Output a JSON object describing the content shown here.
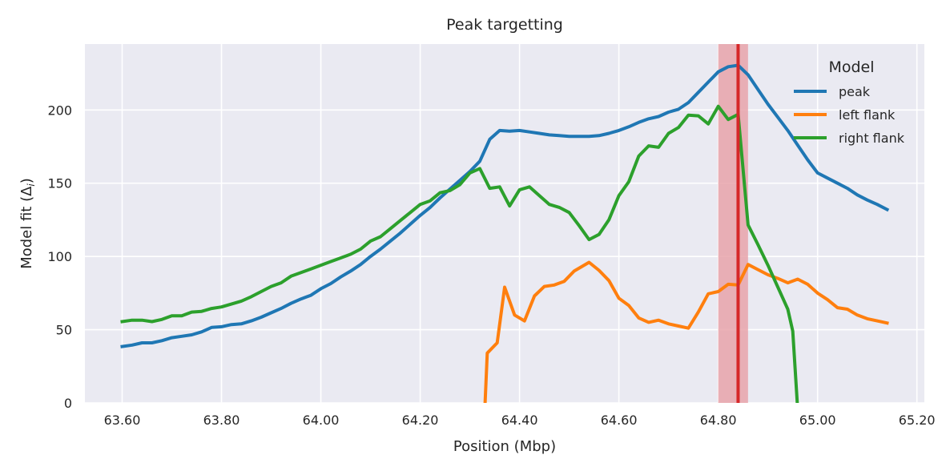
{
  "chart_data": {
    "type": "line",
    "title": "Peak targetting",
    "xlabel": "Position (Mbp)",
    "ylabel": "Model fit (Δ",
    "ylabel_sub": "i",
    "ylabel_close": ")",
    "xlim": [
      63.525,
      65.215
    ],
    "ylim": [
      0,
      245
    ],
    "xticks": [
      63.6,
      63.8,
      64.0,
      64.2,
      64.4,
      64.6,
      64.8,
      65.0,
      65.2
    ],
    "xtick_labels": [
      "63.60",
      "63.80",
      "64.00",
      "64.20",
      "64.40",
      "64.60",
      "64.80",
      "65.00",
      "65.20"
    ],
    "yticks": [
      0,
      50,
      100,
      150,
      200
    ],
    "ytick_labels": [
      "0",
      "50",
      "100",
      "150",
      "200"
    ],
    "grid": true,
    "background_color": "#eaeaf2",
    "legend": {
      "title": "Model",
      "position": "top-right"
    },
    "highlight_band": {
      "x0": 64.8,
      "x1": 64.86,
      "color": "#e8a3aa"
    },
    "highlight_line": {
      "x": 64.84,
      "color": "#d62728"
    },
    "series": [
      {
        "name": "peak",
        "color": "#1f77b4",
        "points": [
          [
            63.6,
            38.5
          ],
          [
            63.62,
            39.5
          ],
          [
            63.64,
            41
          ],
          [
            63.66,
            41
          ],
          [
            63.68,
            42.5
          ],
          [
            63.7,
            44.5
          ],
          [
            63.72,
            45.5
          ],
          [
            63.74,
            46.5
          ],
          [
            63.76,
            48.5
          ],
          [
            63.78,
            51.5
          ],
          [
            63.8,
            52
          ],
          [
            63.82,
            53.5
          ],
          [
            63.84,
            54
          ],
          [
            63.86,
            56
          ],
          [
            63.88,
            58.5
          ],
          [
            63.9,
            61.5
          ],
          [
            63.92,
            64.5
          ],
          [
            63.94,
            68
          ],
          [
            63.96,
            71
          ],
          [
            63.98,
            73.5
          ],
          [
            64.0,
            78
          ],
          [
            64.02,
            81.5
          ],
          [
            64.04,
            86
          ],
          [
            64.06,
            90
          ],
          [
            64.08,
            94.5
          ],
          [
            64.1,
            100
          ],
          [
            64.12,
            105
          ],
          [
            64.14,
            110.5
          ],
          [
            64.16,
            116
          ],
          [
            64.18,
            122
          ],
          [
            64.2,
            128
          ],
          [
            64.22,
            133.5
          ],
          [
            64.24,
            140
          ],
          [
            64.26,
            146
          ],
          [
            64.28,
            152
          ],
          [
            64.3,
            158
          ],
          [
            64.32,
            165
          ],
          [
            64.34,
            180
          ],
          [
            64.36,
            186
          ],
          [
            64.38,
            185.5
          ],
          [
            64.4,
            186
          ],
          [
            64.42,
            185
          ],
          [
            64.44,
            184
          ],
          [
            64.46,
            183
          ],
          [
            64.48,
            182.5
          ],
          [
            64.5,
            182
          ],
          [
            64.52,
            182
          ],
          [
            64.54,
            182
          ],
          [
            64.56,
            182.5
          ],
          [
            64.58,
            184
          ],
          [
            64.6,
            186
          ],
          [
            64.62,
            188.5
          ],
          [
            64.64,
            191.5
          ],
          [
            64.66,
            194
          ],
          [
            64.68,
            195.5
          ],
          [
            64.7,
            198.5
          ],
          [
            64.72,
            200.5
          ],
          [
            64.74,
            205
          ],
          [
            64.76,
            212
          ],
          [
            64.78,
            219
          ],
          [
            64.8,
            226
          ],
          [
            64.82,
            229.5
          ],
          [
            64.84,
            230.5
          ],
          [
            64.86,
            224
          ],
          [
            64.88,
            214
          ],
          [
            64.9,
            204
          ],
          [
            64.92,
            195
          ],
          [
            64.94,
            186
          ],
          [
            64.96,
            176
          ],
          [
            64.98,
            166
          ],
          [
            65.0,
            157
          ],
          [
            65.02,
            153.5
          ],
          [
            65.04,
            150
          ],
          [
            65.06,
            146.5
          ],
          [
            65.08,
            142
          ],
          [
            65.1,
            138.5
          ],
          [
            65.12,
            135.5
          ],
          [
            65.14,
            132
          ]
        ]
      },
      {
        "name": "left flank",
        "color": "#ff7f0e",
        "points": [
          [
            64.33,
            -5
          ],
          [
            64.335,
            34
          ],
          [
            64.355,
            41
          ],
          [
            64.37,
            79
          ],
          [
            64.39,
            60
          ],
          [
            64.41,
            56
          ],
          [
            64.43,
            73
          ],
          [
            64.45,
            79.5
          ],
          [
            64.47,
            80.5
          ],
          [
            64.49,
            83
          ],
          [
            64.51,
            90
          ],
          [
            64.54,
            96
          ],
          [
            64.56,
            90.5
          ],
          [
            64.58,
            83.5
          ],
          [
            64.6,
            71.5
          ],
          [
            64.62,
            66.5
          ],
          [
            64.64,
            58
          ],
          [
            64.66,
            55
          ],
          [
            64.68,
            56.5
          ],
          [
            64.7,
            54
          ],
          [
            64.72,
            52.5
          ],
          [
            64.74,
            51
          ],
          [
            64.76,
            62
          ],
          [
            64.78,
            74.5
          ],
          [
            64.8,
            76
          ],
          [
            64.82,
            81
          ],
          [
            64.84,
            80.5
          ],
          [
            64.86,
            94.5
          ],
          [
            64.88,
            91
          ],
          [
            64.9,
            87.5
          ],
          [
            64.92,
            85
          ],
          [
            64.94,
            82
          ],
          [
            64.96,
            84.5
          ],
          [
            64.98,
            81
          ],
          [
            65.0,
            75
          ],
          [
            65.02,
            70.5
          ],
          [
            65.04,
            65
          ],
          [
            65.06,
            64
          ],
          [
            65.08,
            60
          ],
          [
            65.1,
            57.5
          ],
          [
            65.12,
            56
          ],
          [
            65.14,
            54.5
          ]
        ]
      },
      {
        "name": "right flank",
        "color": "#2ca02c",
        "points": [
          [
            63.6,
            55.5
          ],
          [
            63.62,
            56.5
          ],
          [
            63.64,
            56.5
          ],
          [
            63.66,
            55.5
          ],
          [
            63.68,
            57
          ],
          [
            63.7,
            59.5
          ],
          [
            63.72,
            59.5
          ],
          [
            63.74,
            62
          ],
          [
            63.76,
            62.5
          ],
          [
            63.78,
            64.5
          ],
          [
            63.8,
            65.5
          ],
          [
            63.82,
            67.5
          ],
          [
            63.84,
            69.5
          ],
          [
            63.86,
            72.5
          ],
          [
            63.88,
            76
          ],
          [
            63.9,
            79.5
          ],
          [
            63.92,
            82
          ],
          [
            63.94,
            86.5
          ],
          [
            63.96,
            89
          ],
          [
            63.98,
            91.5
          ],
          [
            64.0,
            94
          ],
          [
            64.02,
            96.5
          ],
          [
            64.04,
            99
          ],
          [
            64.06,
            101.5
          ],
          [
            64.08,
            105
          ],
          [
            64.1,
            110.5
          ],
          [
            64.12,
            113.5
          ],
          [
            64.14,
            119
          ],
          [
            64.16,
            124.5
          ],
          [
            64.18,
            130
          ],
          [
            64.2,
            135.5
          ],
          [
            64.22,
            138
          ],
          [
            64.24,
            143.5
          ],
          [
            64.26,
            145
          ],
          [
            64.28,
            149
          ],
          [
            64.3,
            157
          ],
          [
            64.32,
            160
          ],
          [
            64.34,
            146.5
          ],
          [
            64.36,
            147.5
          ],
          [
            64.38,
            134.5
          ],
          [
            64.4,
            145.5
          ],
          [
            64.42,
            147.5
          ],
          [
            64.44,
            141.5
          ],
          [
            64.46,
            135.5
          ],
          [
            64.48,
            133.5
          ],
          [
            64.5,
            130
          ],
          [
            64.52,
            121
          ],
          [
            64.54,
            111.5
          ],
          [
            64.56,
            115
          ],
          [
            64.58,
            125
          ],
          [
            64.6,
            141.5
          ],
          [
            64.62,
            151
          ],
          [
            64.64,
            168.5
          ],
          [
            64.66,
            175.5
          ],
          [
            64.68,
            174.5
          ],
          [
            64.7,
            184
          ],
          [
            64.72,
            188
          ],
          [
            64.74,
            196.5
          ],
          [
            64.76,
            196
          ],
          [
            64.78,
            190.5
          ],
          [
            64.8,
            202.5
          ],
          [
            64.82,
            193.5
          ],
          [
            64.84,
            197
          ],
          [
            64.86,
            121.5
          ],
          [
            64.88,
            108
          ],
          [
            64.9,
            94
          ],
          [
            64.92,
            79
          ],
          [
            64.94,
            64
          ],
          [
            64.95,
            49
          ],
          [
            64.96,
            -5
          ]
        ]
      }
    ]
  }
}
